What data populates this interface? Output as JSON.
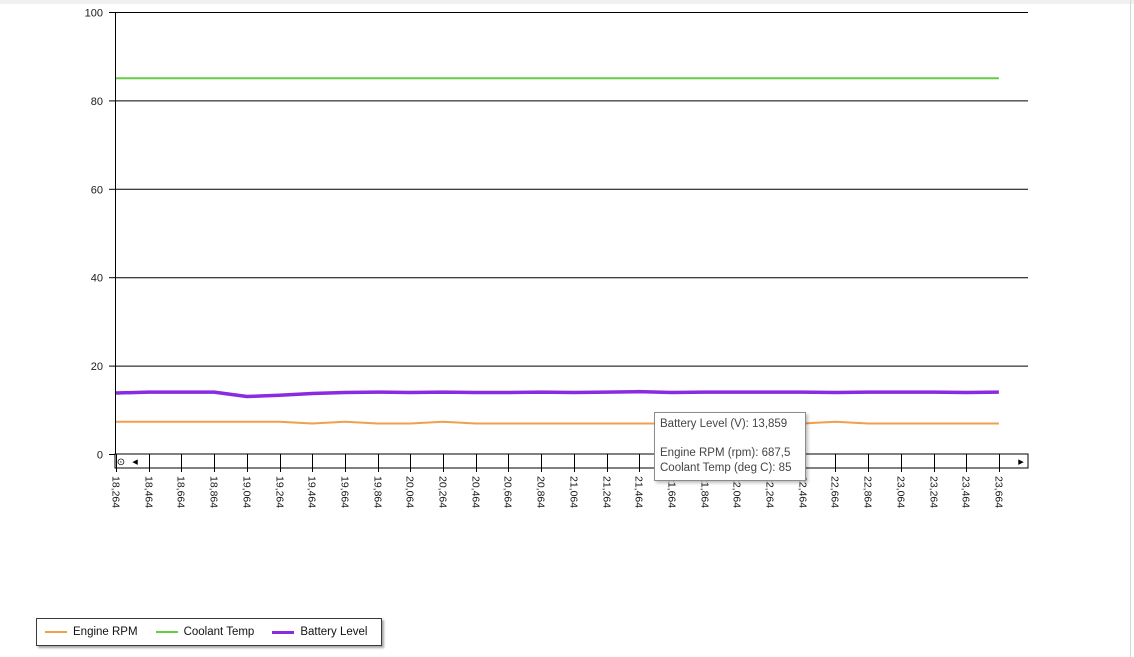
{
  "chart_data": {
    "type": "line",
    "ylim": [
      0,
      100
    ],
    "yticks": [
      0,
      20,
      40,
      60,
      80,
      100
    ],
    "x": [
      "18,264",
      "18,464",
      "18,664",
      "18,864",
      "19,064",
      "19,264",
      "19,464",
      "19,664",
      "19,864",
      "20,064",
      "20,264",
      "20,464",
      "20,664",
      "20,864",
      "21,064",
      "21,264",
      "21,464",
      "21,664",
      "21,864",
      "22,064",
      "22,264",
      "22,464",
      "22,664",
      "22,864",
      "23,064",
      "23,264",
      "23,464",
      "23,664"
    ],
    "series": [
      {
        "name": "Engine RPM",
        "color": "#f0a04b",
        "width": 2,
        "values": [
          7.3,
          7.3,
          7.3,
          7.3,
          7.3,
          7.3,
          6.9,
          7.3,
          6.9,
          6.9,
          7.3,
          6.9,
          6.9,
          6.9,
          6.9,
          6.9,
          6.9,
          6.9,
          6.9,
          6.9,
          6.9,
          6.9,
          7.3,
          6.9,
          6.9,
          6.9,
          6.9,
          6.9
        ]
      },
      {
        "name": "Coolant Temp",
        "color": "#66cc44",
        "width": 2,
        "values": [
          85,
          85,
          85,
          85,
          85,
          85,
          85,
          85,
          85,
          85,
          85,
          85,
          85,
          85,
          85,
          85,
          85,
          85,
          85,
          85,
          85,
          85,
          85,
          85,
          85,
          85,
          85,
          85
        ]
      },
      {
        "name": "Battery Level",
        "color": "#8a2be2",
        "width": 3.5,
        "values": [
          13.8,
          14.0,
          14.0,
          14.0,
          13.0,
          13.3,
          13.7,
          13.9,
          14.0,
          13.9,
          14.0,
          13.9,
          13.9,
          14.0,
          13.9,
          14.0,
          14.1,
          13.9,
          14.0,
          14.0,
          14.0,
          14.0,
          13.9,
          14.0,
          14.0,
          14.0,
          13.9,
          14.0
        ]
      }
    ],
    "legend": "bottom-left",
    "grid": true
  },
  "tooltip": {
    "line1": "Battery Level (V): 13,859",
    "line2": "Engine RPM (rpm): 687,5",
    "line3": "Coolant Temp (deg C): 85"
  },
  "scrollbar": {
    "zoom_reset_symbol": "⊙",
    "left_arrow": "◂",
    "right_arrow": "▸"
  }
}
